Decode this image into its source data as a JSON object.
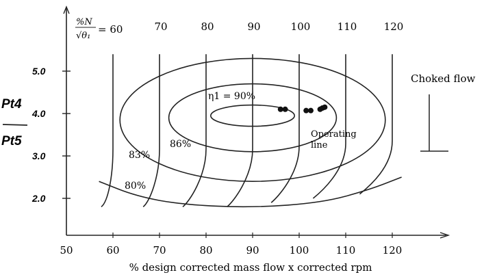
{
  "chart_data": {
    "type": "line",
    "xlabel": "% design corrected mass flow x corrected rpm",
    "ylabel_num": "Pt4",
    "ylabel_den": "Pt5",
    "speed_label": "%N/√θ1 = 60",
    "xlim": [
      50,
      125
    ],
    "ylim": [
      1.5,
      5.5
    ],
    "x_ticks": [
      "50",
      "60",
      "70",
      "80",
      "90",
      "100",
      "110",
      "120"
    ],
    "x_tick_values": [
      50,
      60,
      70,
      80,
      90,
      100,
      110,
      120
    ],
    "y_ticks": [
      "2.0",
      "3.0",
      "4.0",
      "5.0"
    ],
    "y_tick_values": [
      2.0,
      3.0,
      4.0,
      5.0
    ],
    "speed_lines": [
      {
        "label": "60",
        "top": [
          60.0,
          5.4
        ],
        "bottom": [
          57.5,
          1.8
        ]
      },
      {
        "label": "70",
        "top": [
          70.0,
          5.4
        ],
        "bottom": [
          66.5,
          1.8
        ]
      },
      {
        "label": "80",
        "top": [
          80.0,
          5.4
        ],
        "bottom": [
          75.0,
          1.8
        ]
      },
      {
        "label": "90",
        "top": [
          90.0,
          5.4
        ],
        "bottom": [
          84.5,
          1.8
        ]
      },
      {
        "label": "100",
        "top": [
          100.0,
          5.4
        ],
        "bottom": [
          94.0,
          1.9
        ]
      },
      {
        "label": "110",
        "top": [
          110.0,
          5.4
        ],
        "bottom": [
          103.0,
          2.0
        ]
      },
      {
        "label": "120",
        "top": [
          120.0,
          5.4
        ],
        "bottom": [
          113.0,
          2.1
        ]
      }
    ],
    "efficiency_contours": [
      {
        "label": "η1 = 90%",
        "center": [
          90.0,
          3.95
        ],
        "rx": 9.0,
        "ry": 0.25
      },
      {
        "label": "86%",
        "center": [
          90.0,
          3.9
        ],
        "rx": 18.0,
        "ry": 0.8
      },
      {
        "label": "83%",
        "center": [
          90.0,
          3.85
        ],
        "rx": 28.5,
        "ry": 1.45
      },
      {
        "label": "80%",
        "points": [
          [
            57.0,
            2.4
          ],
          [
            65.0,
            2.05
          ],
          [
            75.0,
            1.85
          ],
          [
            90.0,
            1.78
          ],
          [
            105.0,
            1.9
          ],
          [
            115.0,
            2.2
          ],
          [
            122.0,
            2.5
          ]
        ]
      }
    ],
    "operating_points": [
      [
        96.0,
        4.1
      ],
      [
        97.0,
        4.1
      ],
      [
        101.5,
        4.07
      ],
      [
        102.5,
        4.07
      ],
      [
        104.5,
        4.1
      ],
      [
        105.0,
        4.13
      ],
      [
        105.5,
        4.15
      ]
    ],
    "annotations": {
      "operating_line": [
        "Operating",
        "line"
      ],
      "choked_flow": "Choked flow"
    }
  }
}
